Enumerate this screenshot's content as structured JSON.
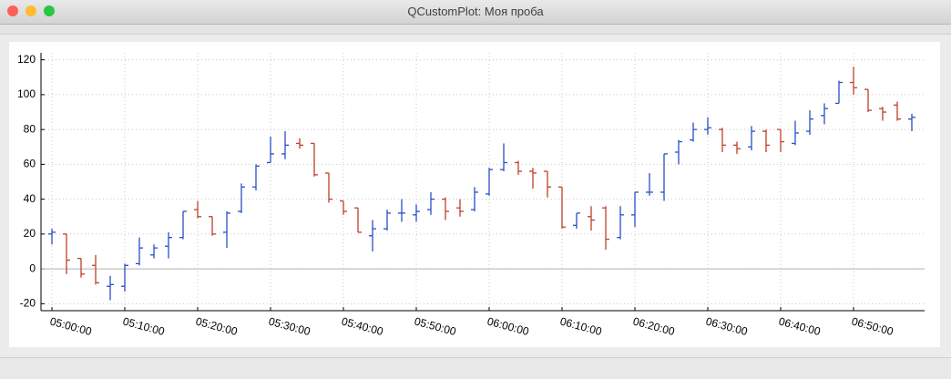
{
  "window": {
    "title": "QCustomPlot: Моя проба"
  },
  "chart_data": {
    "type": "ohlc",
    "x": [
      "05:00:00",
      "05:02:00",
      "05:04:00",
      "05:06:00",
      "05:08:00",
      "05:10:00",
      "05:12:00",
      "05:14:00",
      "05:16:00",
      "05:18:00",
      "05:20:00",
      "05:22:00",
      "05:24:00",
      "05:26:00",
      "05:28:00",
      "05:30:00",
      "05:32:00",
      "05:34:00",
      "05:36:00",
      "05:38:00",
      "05:40:00",
      "05:42:00",
      "05:44:00",
      "05:46:00",
      "05:48:00",
      "05:50:00",
      "05:52:00",
      "05:54:00",
      "05:56:00",
      "05:58:00",
      "06:00:00",
      "06:02:00",
      "06:04:00",
      "06:06:00",
      "06:08:00",
      "06:10:00",
      "06:12:00",
      "06:14:00",
      "06:16:00",
      "06:18:00",
      "06:20:00",
      "06:22:00",
      "06:24:00",
      "06:26:00",
      "06:28:00",
      "06:30:00",
      "06:32:00",
      "06:34:00",
      "06:36:00",
      "06:38:00",
      "06:40:00",
      "06:42:00",
      "06:44:00",
      "06:46:00",
      "06:48:00",
      "06:50:00",
      "06:52:00",
      "06:54:00",
      "06:56:00",
      "06:58:00"
    ],
    "open": [
      20,
      20,
      6,
      2,
      -10,
      -10,
      3,
      8,
      13,
      18,
      34,
      30,
      21,
      33,
      47,
      61,
      66,
      72,
      72,
      55,
      39,
      35,
      19,
      23,
      32,
      31,
      34,
      40,
      35,
      34,
      43,
      57,
      61,
      56,
      56,
      47,
      25,
      30,
      35,
      18,
      31,
      44,
      44,
      67,
      74,
      80,
      80,
      71,
      70,
      79,
      80,
      72,
      79,
      88,
      95,
      107,
      103,
      92,
      94,
      86
    ],
    "high": [
      23,
      20,
      6,
      8,
      -4,
      3,
      18,
      14,
      21,
      33,
      39,
      30,
      33,
      49,
      60,
      76,
      79,
      75,
      72,
      55,
      39,
      35,
      28,
      34,
      40,
      37,
      44,
      41,
      40,
      47,
      58,
      72,
      62,
      58,
      56,
      47,
      32,
      36,
      36,
      36,
      44,
      55,
      66,
      74,
      84,
      87,
      81,
      73,
      82,
      80,
      80,
      85,
      91,
      95,
      108,
      116,
      103,
      93,
      96,
      89
    ],
    "low": [
      14,
      -3,
      -5,
      -9,
      -18,
      -13,
      2,
      6,
      6,
      17,
      29,
      19,
      12,
      32,
      45,
      61,
      63,
      69,
      53,
      38,
      31,
      21,
      10,
      22,
      27,
      27,
      31,
      28,
      30,
      33,
      42,
      56,
      54,
      46,
      41,
      23,
      23,
      22,
      11,
      17,
      24,
      42,
      39,
      60,
      73,
      77,
      67,
      66,
      68,
      67,
      67,
      71,
      77,
      83,
      95,
      100,
      90,
      85,
      85,
      79
    ],
    "close": [
      21,
      5,
      -3,
      -8,
      -9,
      2,
      12,
      12,
      18,
      33,
      30,
      20,
      32,
      47,
      59,
      66,
      71,
      71,
      54,
      40,
      33,
      21,
      23,
      32,
      32,
      33,
      40,
      33,
      33,
      44,
      57,
      61,
      56,
      55,
      47,
      24,
      32,
      28,
      17,
      31,
      44,
      44,
      66,
      73,
      80,
      81,
      71,
      69,
      79,
      71,
      73,
      78,
      86,
      92,
      107,
      104,
      91,
      90,
      86,
      87
    ],
    "up_color": "#2b4fc4",
    "down_color": "#bf3f2a",
    "xlim": [
      "04:58:30",
      "06:59:45"
    ],
    "xticks": [
      "05:00:00",
      "05:10:00",
      "05:20:00",
      "05:30:00",
      "05:40:00",
      "05:50:00",
      "06:00:00",
      "06:10:00",
      "06:20:00",
      "06:30:00",
      "06:40:00",
      "06:50:00"
    ],
    "ylim": [
      -24,
      124
    ],
    "yticks": [
      -20,
      0,
      20,
      40,
      60,
      80,
      100,
      120
    ],
    "grid": true
  }
}
